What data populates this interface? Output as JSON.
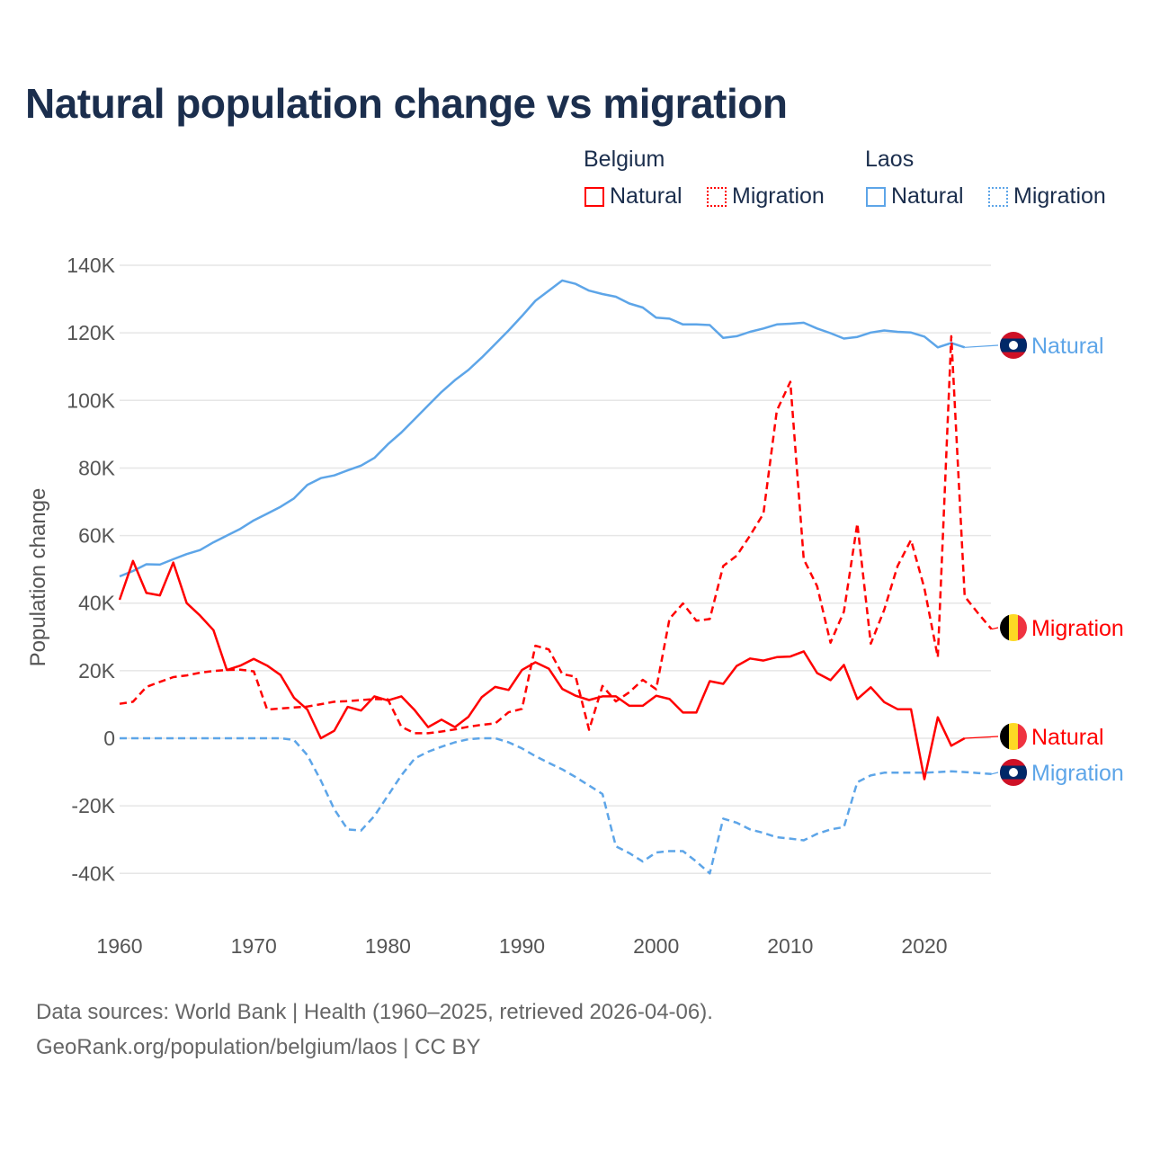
{
  "title": "Natural population change vs migration",
  "legend": {
    "groups": [
      {
        "name": "Belgium",
        "items": [
          "Natural",
          "Migration"
        ],
        "color": "#ff0000"
      },
      {
        "name": "Laos",
        "items": [
          "Natural",
          "Migration"
        ],
        "color": "#5da5e8"
      }
    ]
  },
  "footer": {
    "line1": "Data sources: World Bank | Health (1960–2025, retrieved 2026-04-06).",
    "line2": "GeoRank.org/population/belgium/laos | CC BY"
  },
  "chart_data": {
    "type": "line",
    "title": "Natural population change vs migration",
    "xlabel": "",
    "ylabel": "Population change",
    "xlim": [
      1960,
      2025
    ],
    "ylim": [
      -40000,
      140000
    ],
    "yticks": [
      -40000,
      -20000,
      0,
      20000,
      40000,
      60000,
      80000,
      100000,
      120000,
      140000
    ],
    "ytick_labels": [
      "-40K",
      "-20K",
      "0",
      "20K",
      "40K",
      "60K",
      "80K",
      "100K",
      "120K",
      "140K"
    ],
    "xticks": [
      1960,
      1970,
      1980,
      1990,
      2000,
      2010,
      2020
    ],
    "xtick_labels": [
      "1960",
      "1970",
      "1980",
      "1990",
      "2000",
      "2010",
      "2020"
    ],
    "grid": true,
    "legend_position": "top-right",
    "series": [
      {
        "name": "Laos Natural",
        "country": "Laos",
        "kind": "Natural",
        "label": "Natural",
        "color": "#5da5e8",
        "dashed": false,
        "start": 1960,
        "values": [
          47.9,
          49.5,
          51.5,
          51.4,
          53,
          54.5,
          55.7,
          58,
          60,
          62,
          64.5,
          66.5,
          68.5,
          71,
          75,
          77,
          77.8,
          79.3,
          80.7,
          83,
          87,
          90.5,
          94.5,
          98.5,
          102.5,
          106,
          109,
          112.7,
          116.7,
          120.7,
          125,
          129.5,
          132.5,
          135.5,
          134.5,
          132.5,
          131.5,
          130.7,
          128.7,
          127.5,
          124.5,
          124.2,
          122.5,
          122.5,
          122.3,
          118.5,
          119,
          120.3,
          121.3,
          122.5,
          122.7,
          123,
          121.3,
          119.9,
          118.3,
          118.8,
          120.1,
          120.7,
          120.3,
          120.1,
          118.9,
          115.7,
          117,
          115.7
        ],
        "unit": "thousands"
      },
      {
        "name": "Belgium Migration",
        "country": "Belgium",
        "kind": "Migration",
        "label": "Migration",
        "color": "#ff0000",
        "dashed": true,
        "start": 1960,
        "values": [
          10.2,
          10.8,
          15.2,
          16.7,
          18.1,
          18.6,
          19.4,
          19.9,
          20.2,
          20.3,
          19.8,
          8.5,
          8.8,
          9.1,
          9.4,
          10.1,
          10.8,
          11,
          11.3,
          11.6,
          11.5,
          3.4,
          1.5,
          1.5,
          2,
          2.6,
          3.4,
          4,
          4.4,
          7.7,
          8.7,
          27.4,
          26.3,
          19,
          18.2,
          2.5,
          15.5,
          10.9,
          13.6,
          17.3,
          14.5,
          35.4,
          39.9,
          34.8,
          35.3,
          51,
          54,
          60,
          66.5,
          97,
          105.5,
          53,
          45,
          28.3,
          37.5,
          63.6,
          28,
          38,
          51,
          58.7,
          44.4,
          24,
          119,
          42,
          37,
          32.3
        ],
        "unit": "thousands"
      },
      {
        "name": "Belgium Natural",
        "country": "Belgium",
        "kind": "Natural",
        "label": "Natural",
        "color": "#ff0000",
        "dashed": false,
        "start": 1960,
        "values": [
          41,
          52.5,
          43,
          42.3,
          52,
          40,
          36.3,
          32,
          20.2,
          21.5,
          23.5,
          21.5,
          18.7,
          12,
          8.5,
          0,
          2.2,
          9.3,
          8.2,
          12.4,
          11.2,
          12.4,
          8.3,
          3.3,
          5.5,
          3.3,
          6.3,
          12.2,
          15.2,
          14.3,
          20.2,
          22.5,
          20.6,
          14.6,
          12.6,
          11.3,
          12.4,
          12.4,
          9.6,
          9.6,
          12.6,
          11.6,
          7.6,
          7.6,
          16.9,
          16.1,
          21.4,
          23.6,
          23,
          24,
          24.2,
          25.7,
          19.3,
          17.2,
          21.7,
          11.6,
          15.1,
          10.7,
          8.6,
          8.6,
          -12.1,
          6.2,
          -2.2,
          0
        ],
        "unit": "thousands"
      },
      {
        "name": "Laos Migration",
        "country": "Laos",
        "kind": "Migration",
        "label": "Migration",
        "color": "#5da5e8",
        "dashed": true,
        "start": 1960,
        "values": [
          0,
          0,
          0,
          0,
          0,
          0,
          0,
          0,
          0,
          0,
          0,
          0,
          0,
          -0.5,
          -5,
          -12.5,
          -21,
          -27,
          -27.3,
          -23,
          -17,
          -11,
          -6,
          -4,
          -2.5,
          -1.2,
          -0.3,
          0,
          0,
          -1.2,
          -3,
          -5.3,
          -7.3,
          -9.2,
          -11.5,
          -14,
          -16.5,
          -32,
          -34,
          -36.5,
          -33.8,
          -33.4,
          -33.4,
          -36.5,
          -40,
          -23.8,
          -25,
          -27,
          -28,
          -29.3,
          -29.7,
          -30.2,
          -28.3,
          -27,
          -26.3,
          -13,
          -11,
          -10.2,
          -10.2,
          -10.2,
          -10.2,
          -10,
          -9.8,
          -10,
          -10.3,
          -10.6
        ],
        "unit": "thousands"
      }
    ]
  }
}
